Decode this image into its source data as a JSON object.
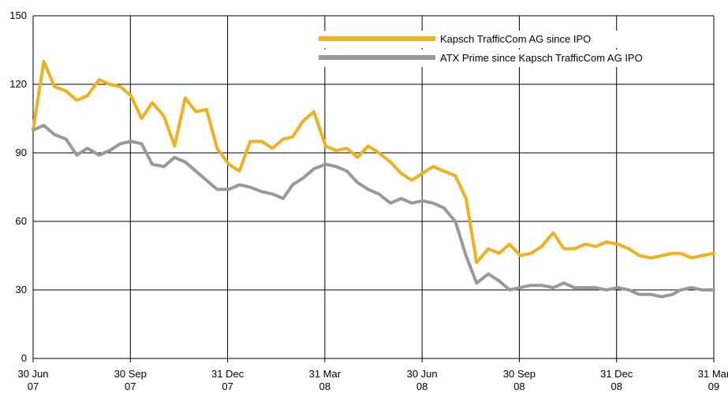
{
  "chart_data": {
    "type": "line",
    "title": "",
    "xlabel": "",
    "ylabel": "",
    "ylim": [
      0,
      150
    ],
    "yticks": [
      0,
      30,
      60,
      90,
      120,
      150
    ],
    "grid": true,
    "legend_position": "top-right",
    "x_ticks": [
      {
        "line1": "30 Jun",
        "line2": "07"
      },
      {
        "line1": "30 Sep",
        "line2": "07"
      },
      {
        "line1": "31 Dec",
        "line2": "07"
      },
      {
        "line1": "31 Mar",
        "line2": "08"
      },
      {
        "line1": "30 Jun",
        "line2": "08"
      },
      {
        "line1": "30 Sep",
        "line2": "08"
      },
      {
        "line1": "31 Dec",
        "line2": "08"
      },
      {
        "line1": "31 Mar",
        "line2": "09"
      }
    ],
    "x": [
      "2007-06-30",
      "2007-07-10",
      "2007-07-20",
      "2007-07-31",
      "2007-08-10",
      "2007-08-20",
      "2007-08-31",
      "2007-09-10",
      "2007-09-20",
      "2007-09-30",
      "2007-10-10",
      "2007-10-20",
      "2007-10-31",
      "2007-11-10",
      "2007-11-20",
      "2007-11-30",
      "2007-12-10",
      "2007-12-20",
      "2007-12-31",
      "2008-01-10",
      "2008-01-20",
      "2008-01-31",
      "2008-02-10",
      "2008-02-20",
      "2008-02-29",
      "2008-03-10",
      "2008-03-20",
      "2008-03-31",
      "2008-04-10",
      "2008-04-20",
      "2008-04-30",
      "2008-05-10",
      "2008-05-20",
      "2008-05-31",
      "2008-06-10",
      "2008-06-20",
      "2008-06-30",
      "2008-07-10",
      "2008-07-20",
      "2008-07-31",
      "2008-08-10",
      "2008-08-20",
      "2008-08-31",
      "2008-09-10",
      "2008-09-20",
      "2008-09-30",
      "2008-10-10",
      "2008-10-20",
      "2008-10-31",
      "2008-11-10",
      "2008-11-20",
      "2008-11-30",
      "2008-12-10",
      "2008-12-20",
      "2008-12-31",
      "2009-01-10",
      "2009-01-20",
      "2009-01-31",
      "2009-02-10",
      "2009-02-20",
      "2009-02-28",
      "2009-03-10",
      "2009-03-20",
      "2009-03-31"
    ],
    "series": [
      {
        "name": "Kapsch TrafficCom AG since IPO",
        "color": "#f0b020",
        "values": [
          100,
          130,
          119,
          117,
          113,
          115,
          122,
          120,
          119,
          115,
          105,
          112,
          106,
          93,
          114,
          108,
          109,
          92,
          85,
          82,
          95,
          95,
          92,
          96,
          97,
          104,
          108,
          93,
          91,
          92,
          88,
          93,
          90,
          86,
          81,
          78,
          81,
          84,
          82,
          80,
          70,
          42,
          48,
          46,
          50,
          45,
          46,
          49,
          55,
          48,
          48,
          50,
          49,
          51,
          50,
          48,
          45,
          44,
          45,
          46,
          46,
          44,
          45,
          46
        ]
      },
      {
        "name": "ATX Prime since Kapsch TrafficCom AG IPO",
        "color": "#999999",
        "values": [
          100,
          102,
          98,
          96,
          89,
          92,
          89,
          91,
          94,
          95,
          94,
          85,
          84,
          88,
          86,
          82,
          78,
          74,
          74,
          76,
          75,
          73,
          72,
          70,
          76,
          79,
          83,
          85,
          84,
          82,
          77,
          74,
          72,
          68,
          70,
          68,
          69,
          68,
          66,
          60,
          45,
          33,
          37,
          34,
          30,
          31,
          32,
          32,
          31,
          33,
          31,
          31,
          31,
          30,
          31,
          30,
          28,
          28,
          27,
          28,
          30,
          31,
          30,
          30
        ]
      }
    ]
  }
}
